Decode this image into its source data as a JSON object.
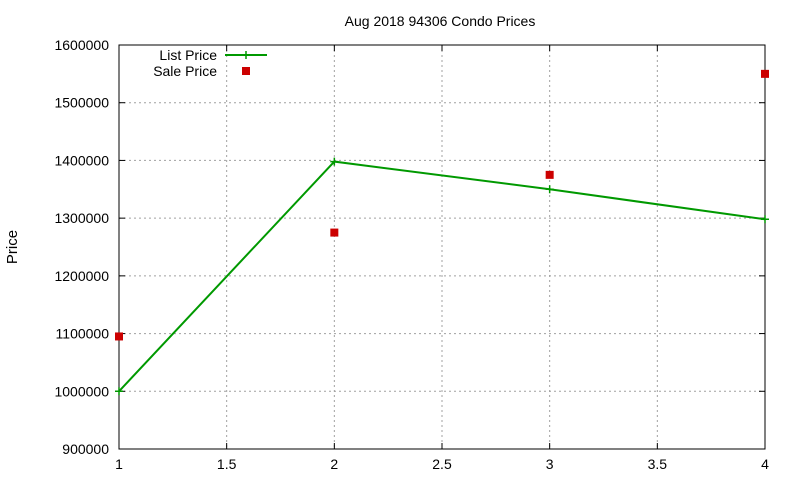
{
  "chart_data": {
    "type": "line",
    "title": "Aug 2018 94306 Condo Prices",
    "xlabel": "",
    "ylabel": "Price",
    "xlim": [
      1,
      4
    ],
    "ylim": [
      900000,
      1600000
    ],
    "grid": true,
    "legend_position": "top-left",
    "xticks": [
      "1",
      "1.5",
      "2",
      "2.5",
      "3",
      "3.5",
      "4"
    ],
    "yticks": [
      "900000",
      "1000000",
      "1100000",
      "1200000",
      "1300000",
      "1400000",
      "1500000",
      "1600000"
    ],
    "series": [
      {
        "name": "List Price",
        "style": "line-with-plus-markers",
        "color": "#009900",
        "x": [
          1,
          2,
          3,
          4
        ],
        "y": [
          1000000,
          1398000,
          1350000,
          1298000
        ]
      },
      {
        "name": "Sale Price",
        "style": "square-markers",
        "color": "#cc0000",
        "x": [
          1,
          2,
          3,
          4
        ],
        "y": [
          1095000,
          1275000,
          1375000,
          1550000
        ]
      }
    ]
  }
}
